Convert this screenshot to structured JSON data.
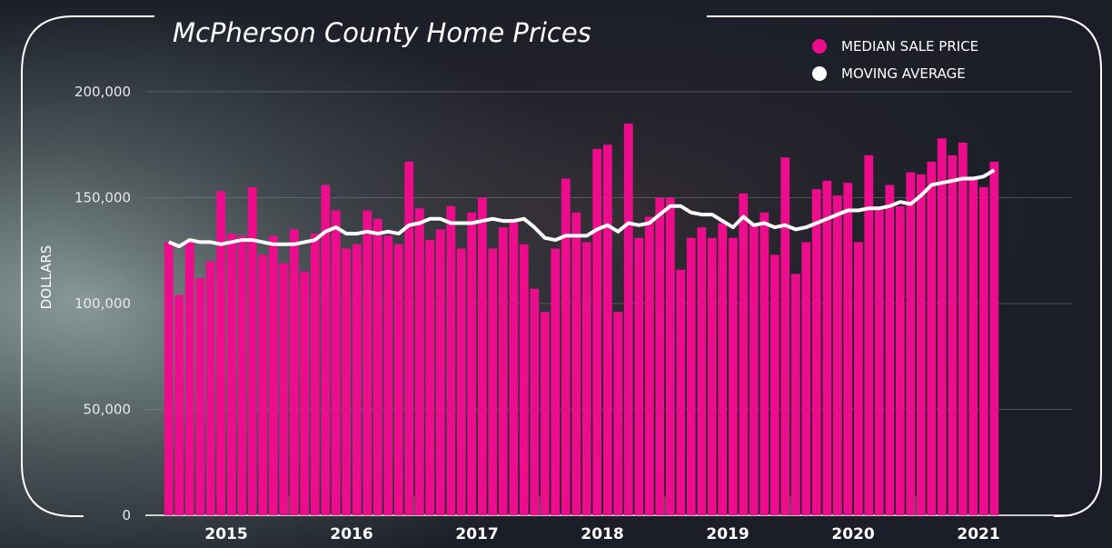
{
  "chart_data": {
    "type": "bar-line",
    "title": "McPherson County Home Prices",
    "y_label": "DOLLARS",
    "x": [
      2015.042,
      2015.125,
      2015.208,
      2015.292,
      2015.375,
      2015.458,
      2015.542,
      2015.625,
      2015.708,
      2015.792,
      2015.875,
      2015.958,
      2016.042,
      2016.125,
      2016.208,
      2016.292,
      2016.375,
      2016.458,
      2016.542,
      2016.625,
      2016.708,
      2016.792,
      2016.875,
      2016.958,
      2017.042,
      2017.125,
      2017.208,
      2017.292,
      2017.375,
      2017.458,
      2017.542,
      2017.625,
      2017.708,
      2017.792,
      2017.875,
      2017.958,
      2018.042,
      2018.125,
      2018.208,
      2018.292,
      2018.375,
      2018.458,
      2018.542,
      2018.625,
      2018.708,
      2018.792,
      2018.875,
      2018.958,
      2019.042,
      2019.125,
      2019.208,
      2019.292,
      2019.375,
      2019.458,
      2019.542,
      2019.625,
      2019.708,
      2019.792,
      2019.875,
      2019.958,
      2020.042,
      2020.125,
      2020.208,
      2020.292,
      2020.375,
      2020.458,
      2020.542,
      2020.625,
      2020.708,
      2020.792,
      2020.875,
      2020.958,
      2021.042,
      2021.125,
      2021.208,
      2021.292,
      2021.375,
      2021.458,
      2021.542,
      2021.625
    ],
    "series": [
      {
        "name": "MEDIAN SALE PRICE",
        "color": "#ec0c8c",
        "kind": "bar",
        "values": [
          129000,
          104000,
          130000,
          112000,
          120000,
          153000,
          133000,
          132000,
          155000,
          123000,
          132000,
          119000,
          135000,
          115000,
          133000,
          156000,
          144000,
          126000,
          128000,
          144000,
          140000,
          132000,
          128000,
          167000,
          145000,
          130000,
          135000,
          146000,
          126000,
          143000,
          150000,
          126000,
          136000,
          140000,
          128000,
          107000,
          96000,
          126000,
          159000,
          143000,
          129000,
          173000,
          175000,
          96000,
          185000,
          131000,
          141000,
          150000,
          150000,
          116000,
          131000,
          136000,
          131000,
          138000,
          131000,
          152000,
          138000,
          143000,
          123000,
          169000,
          114000,
          129000,
          154000,
          158000,
          151000,
          157000,
          129000,
          170000,
          146000,
          156000,
          146000,
          162000,
          161000,
          167000,
          178000,
          170000,
          176000,
          160000,
          155000,
          167000
        ]
      },
      {
        "name": "MOVING AVERAGE",
        "color": "#ffffff",
        "kind": "line",
        "values": [
          129000,
          127000,
          130000,
          129000,
          129000,
          128000,
          129000,
          130000,
          130000,
          129000,
          128000,
          128000,
          128000,
          129000,
          130000,
          134000,
          136000,
          133000,
          133000,
          134000,
          133000,
          134000,
          133000,
          137000,
          138000,
          140000,
          140000,
          138000,
          138000,
          138000,
          139000,
          140000,
          139000,
          139000,
          140000,
          136000,
          131000,
          130000,
          132000,
          132000,
          132000,
          135000,
          137000,
          134000,
          138000,
          137000,
          138000,
          142000,
          146000,
          146000,
          143000,
          142000,
          142000,
          139000,
          136000,
          141000,
          137000,
          138000,
          136000,
          137000,
          135000,
          136000,
          138000,
          140000,
          142000,
          144000,
          144000,
          145000,
          145000,
          146000,
          148000,
          147000,
          151000,
          156000,
          157000,
          158000,
          159000,
          159000,
          160000,
          163000
        ]
      }
    ],
    "xlim": [
      2014.565,
      2022.246
    ],
    "xticks": [
      {
        "value": 2015.5,
        "label": "2015"
      },
      {
        "value": 2016.5,
        "label": "2016"
      },
      {
        "value": 2017.5,
        "label": "2017"
      },
      {
        "value": 2018.5,
        "label": "2018"
      },
      {
        "value": 2019.5,
        "label": "2019"
      },
      {
        "value": 2020.5,
        "label": "2020"
      },
      {
        "value": 2021.5,
        "label": "2021"
      }
    ],
    "ylim": [
      0,
      200000
    ],
    "yticks": [
      {
        "value": 0,
        "label": "0"
      },
      {
        "value": 50000,
        "label": "50,000"
      },
      {
        "value": 100000,
        "label": "100,000"
      },
      {
        "value": 150000,
        "label": "150,000"
      },
      {
        "value": 200000,
        "label": "200,000"
      }
    ],
    "grid": true,
    "legend": "top-right"
  }
}
